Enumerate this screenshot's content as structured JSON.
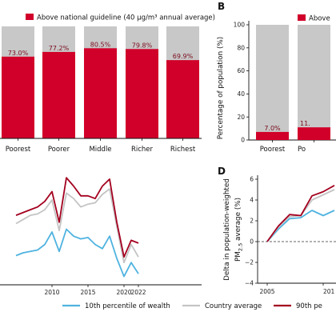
{
  "colors": {
    "above": "#d1002a",
    "below": "#c8c8c8",
    "p10": "#4fb3e0",
    "avg": "#c4c4c4",
    "p90": "#a3001f"
  },
  "chart_data": [
    {
      "panel": "A",
      "type": "bar",
      "stacked": true,
      "categories": [
        "Poorest",
        "Poorer",
        "Middle",
        "Richer",
        "Richest"
      ],
      "values": [
        73.0,
        77.2,
        80.5,
        79.8,
        69.9
      ],
      "value_labels": [
        "73.0%",
        "77.2%",
        "80.5%",
        "79.8%",
        "69.9%"
      ],
      "ylim": [
        0,
        100
      ],
      "legend": [
        {
          "name": "Above national guideline (40 µg/m³ annual average)"
        }
      ]
    },
    {
      "panel": "B",
      "letter": "B",
      "type": "bar",
      "stacked": true,
      "categories": [
        "Poorest",
        "Po"
      ],
      "values": [
        7.0,
        11.0
      ],
      "value_labels": [
        "7.0%",
        "11."
      ],
      "ylim": [
        0,
        100
      ],
      "yticks": [
        "0",
        "20",
        "40",
        "60",
        "80",
        "100"
      ],
      "ylabel": "Percentage of population (%)",
      "legend": [
        {
          "name": "Above"
        }
      ]
    },
    {
      "panel": "C",
      "type": "line",
      "x": [
        2005,
        2006,
        2007,
        2008,
        2009,
        2010,
        2011,
        2012,
        2013,
        2014,
        2015,
        2016,
        2017,
        2018,
        2019,
        2020,
        2021,
        2022
      ],
      "xticks": [
        "2010",
        "2015",
        "2020",
        "2022"
      ],
      "series": [
        {
          "name": "10th percentile of wealth",
          "values": [
            10.5,
            11.5,
            12.0,
            12.5,
            14.5,
            19.0,
            12.0,
            20.0,
            17.5,
            16.5,
            17.0,
            14.5,
            13.0,
            17.5,
            9.5,
            3.0,
            8.0,
            4.0
          ]
        },
        {
          "name": "Country average",
          "values": [
            22.0,
            23.5,
            25.0,
            25.5,
            27.0,
            30.5,
            19.5,
            33.0,
            31.0,
            28.0,
            29.0,
            29.5,
            32.5,
            34.5,
            21.0,
            8.0,
            14.5,
            10.0
          ]
        },
        {
          "name": "90th percentile",
          "values": [
            25.0,
            26.0,
            27.0,
            28.0,
            30.0,
            33.5,
            22.5,
            38.5,
            35.5,
            32.0,
            32.0,
            31.0,
            35.5,
            38.0,
            22.5,
            10.0,
            16.0,
            15.0
          ]
        }
      ]
    },
    {
      "panel": "D",
      "letter": "D",
      "type": "line",
      "ylabel_line1": "Delta in population-weighted",
      "ylabel_line2": "PM",
      "ylabel_sub": "2.5",
      "ylabel_line2_rest": " average (%)",
      "ylim": [
        -4,
        6
      ],
      "yticks": [
        "−4",
        "−2",
        "0",
        "2",
        "4",
        "6"
      ],
      "xticks": [
        "2005",
        "201"
      ],
      "x": [
        2005,
        2006,
        2007,
        2008,
        2009,
        2010,
        2011
      ],
      "series": [
        {
          "name": "10th percentile of wealth",
          "values": [
            0,
            1.2,
            2.2,
            2.3,
            3.0,
            2.5,
            3.0
          ]
        },
        {
          "name": "Country average",
          "values": [
            0,
            1.4,
            2.4,
            2.5,
            4.0,
            4.5,
            5.0
          ]
        },
        {
          "name": "90th percentile",
          "values": [
            0,
            1.5,
            2.6,
            2.5,
            4.4,
            4.8,
            5.4
          ]
        }
      ],
      "zero_line": true
    }
  ],
  "legend_bottom": [
    {
      "name": "10th percentile of wealth"
    },
    {
      "name": "Country average"
    },
    {
      "name": "90th pe"
    }
  ]
}
